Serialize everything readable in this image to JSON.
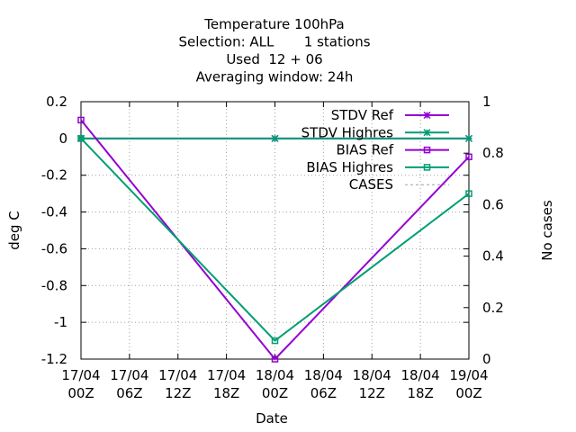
{
  "chart_data": {
    "type": "line",
    "title_lines": [
      "Temperature 100hPa",
      "Selection: ALL       1 stations",
      "Used  12 + 06",
      "Averaging window: 24h"
    ],
    "xlabel": "Date",
    "ylabel": "deg C",
    "y2label": "No cases",
    "x_ticks": [
      [
        "17/04",
        "00Z"
      ],
      [
        "17/04",
        "06Z"
      ],
      [
        "17/04",
        "12Z"
      ],
      [
        "17/04",
        "18Z"
      ],
      [
        "18/04",
        "00Z"
      ],
      [
        "18/04",
        "06Z"
      ],
      [
        "18/04",
        "12Z"
      ],
      [
        "18/04",
        "18Z"
      ],
      [
        "19/04",
        "00Z"
      ]
    ],
    "y_ticks": [
      "0.2",
      "0",
      "-0.2",
      "-0.4",
      "-0.6",
      "-0.8",
      "-1",
      "-1.2"
    ],
    "y_tick_values": [
      0.2,
      0,
      -0.2,
      -0.4,
      -0.6,
      -0.8,
      -1,
      -1.2
    ],
    "y2_ticks": [
      "1",
      "0.8",
      "0.6",
      "0.4",
      "0.2",
      "0"
    ],
    "y2_tick_values": [
      1,
      0.8,
      0.6,
      0.4,
      0.2,
      0
    ],
    "ylim": [
      -1.2,
      0.2
    ],
    "y2lim": [
      0,
      1
    ],
    "xlim_hours": [
      0,
      48
    ],
    "grid": true,
    "legend_position": "top-right",
    "series": [
      {
        "name": "STDV Ref",
        "color": "#9400d3",
        "marker": "star",
        "x_hours": [
          0,
          24,
          48
        ],
        "values": [
          0,
          0,
          0
        ]
      },
      {
        "name": "STDV Highres",
        "color": "#009e73",
        "marker": "star",
        "x_hours": [
          0,
          24,
          48
        ],
        "values": [
          0,
          0,
          0
        ]
      },
      {
        "name": "BIAS Ref",
        "color": "#9400d3",
        "marker": "square",
        "x_hours": [
          0,
          24,
          48
        ],
        "values": [
          0.1,
          -1.2,
          -0.1
        ]
      },
      {
        "name": "BIAS Highres",
        "color": "#009e73",
        "marker": "square",
        "x_hours": [
          0,
          24,
          48
        ],
        "values": [
          0,
          -1.1,
          -0.3
        ]
      },
      {
        "name": "CASES",
        "color": "#a0a0a0",
        "marker": "none",
        "dashed": true,
        "x_hours": [],
        "values": []
      }
    ]
  }
}
